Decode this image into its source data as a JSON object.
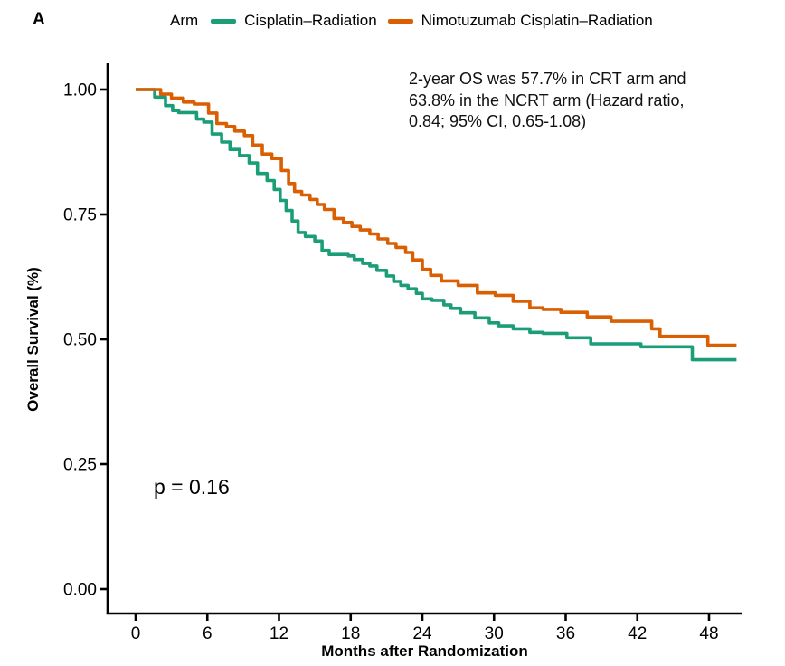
{
  "panel_label": "A",
  "legend": {
    "title": "Arm",
    "series": [
      {
        "label": "Cisplatin–Radiation",
        "color": "#1B9E77"
      },
      {
        "label": "Nimotuzumab Cisplatin–Radiation",
        "color": "#D95F02"
      }
    ]
  },
  "annotation": {
    "line1": "2-year OS was 57.7% in CRT arm and",
    "line2": "63.8% in the NCRT arm (Hazard ratio,",
    "line3": "0.84; 95% CI, 0.65-1.08)"
  },
  "p_value": "p = 0.16",
  "chart_data": {
    "type": "line",
    "subtype": "kaplan-meier-step",
    "title": "",
    "xlabel": "Months after Randomization",
    "ylabel": "Overall Survival (%)",
    "xlim": [
      0,
      50.7
    ],
    "ylim": [
      0,
      1.05
    ],
    "grid": false,
    "legend_position": "top",
    "x_ticks": [
      0,
      6,
      12,
      18,
      24,
      30,
      36,
      42,
      48
    ],
    "y_ticks": [
      {
        "value": 0.0,
        "label": "0.00"
      },
      {
        "value": 0.25,
        "label": "0.25"
      },
      {
        "value": 0.5,
        "label": "0.50"
      },
      {
        "value": 0.75,
        "label": "0.75"
      },
      {
        "value": 1.0,
        "label": "1.00"
      }
    ],
    "curve_end_month": 50.3,
    "stats": {
      "crt_2yr_os_pct": 57.7,
      "ncrt_2yr_os_pct": 63.8,
      "hazard_ratio": 0.84,
      "ci_95": "0.65-1.08",
      "p_value": 0.16
    },
    "series": [
      {
        "name": "Cisplatin–Radiation",
        "color": "#1B9E77",
        "steps": [
          [
            0,
            1.0
          ],
          [
            1.6,
            0.985
          ],
          [
            2.5,
            0.968
          ],
          [
            3.1,
            0.958
          ],
          [
            3.6,
            0.954
          ],
          [
            5.1,
            0.941
          ],
          [
            5.7,
            0.935
          ],
          [
            6.4,
            0.911
          ],
          [
            7.2,
            0.895
          ],
          [
            7.9,
            0.88
          ],
          [
            8.7,
            0.868
          ],
          [
            9.5,
            0.853
          ],
          [
            10.2,
            0.832
          ],
          [
            11.0,
            0.818
          ],
          [
            11.6,
            0.8
          ],
          [
            12.1,
            0.778
          ],
          [
            12.6,
            0.758
          ],
          [
            13.1,
            0.737
          ],
          [
            13.6,
            0.714
          ],
          [
            14.2,
            0.706
          ],
          [
            15.0,
            0.697
          ],
          [
            15.6,
            0.678
          ],
          [
            16.2,
            0.67
          ],
          [
            17.8,
            0.667
          ],
          [
            18.3,
            0.66
          ],
          [
            19.0,
            0.652
          ],
          [
            19.6,
            0.647
          ],
          [
            20.2,
            0.638
          ],
          [
            21.0,
            0.627
          ],
          [
            21.6,
            0.616
          ],
          [
            22.2,
            0.608
          ],
          [
            22.8,
            0.601
          ],
          [
            23.5,
            0.592
          ],
          [
            24.0,
            0.581
          ],
          [
            24.8,
            0.578
          ],
          [
            25.8,
            0.569
          ],
          [
            26.4,
            0.562
          ],
          [
            27.2,
            0.553
          ],
          [
            28.4,
            0.543
          ],
          [
            29.6,
            0.533
          ],
          [
            30.4,
            0.527
          ],
          [
            31.6,
            0.521
          ],
          [
            33.0,
            0.514
          ],
          [
            34.1,
            0.512
          ],
          [
            36.1,
            0.503
          ],
          [
            38.1,
            0.491
          ],
          [
            42.3,
            0.485
          ],
          [
            46.6,
            0.459
          ],
          [
            50.3,
            0.459
          ]
        ]
      },
      {
        "name": "Nimotuzumab Cisplatin–Radiation",
        "color": "#D95F02",
        "steps": [
          [
            0,
            1.0
          ],
          [
            2.1,
            0.991
          ],
          [
            3.0,
            0.983
          ],
          [
            4.0,
            0.975
          ],
          [
            4.9,
            0.971
          ],
          [
            6.1,
            0.953
          ],
          [
            6.8,
            0.932
          ],
          [
            7.6,
            0.926
          ],
          [
            8.3,
            0.917
          ],
          [
            9.1,
            0.908
          ],
          [
            9.8,
            0.889
          ],
          [
            10.6,
            0.871
          ],
          [
            11.4,
            0.862
          ],
          [
            12.2,
            0.838
          ],
          [
            12.8,
            0.812
          ],
          [
            13.3,
            0.796
          ],
          [
            13.9,
            0.789
          ],
          [
            14.6,
            0.78
          ],
          [
            15.2,
            0.77
          ],
          [
            15.8,
            0.76
          ],
          [
            16.6,
            0.742
          ],
          [
            17.4,
            0.734
          ],
          [
            18.1,
            0.726
          ],
          [
            18.8,
            0.719
          ],
          [
            19.6,
            0.711
          ],
          [
            20.3,
            0.701
          ],
          [
            21.1,
            0.692
          ],
          [
            21.8,
            0.684
          ],
          [
            22.6,
            0.674
          ],
          [
            23.2,
            0.659
          ],
          [
            24.0,
            0.64
          ],
          [
            24.7,
            0.628
          ],
          [
            25.6,
            0.617
          ],
          [
            27.0,
            0.608
          ],
          [
            28.6,
            0.593
          ],
          [
            30.1,
            0.588
          ],
          [
            31.6,
            0.576
          ],
          [
            33.0,
            0.563
          ],
          [
            34.1,
            0.56
          ],
          [
            35.6,
            0.554
          ],
          [
            37.8,
            0.545
          ],
          [
            39.8,
            0.536
          ],
          [
            43.2,
            0.521
          ],
          [
            43.9,
            0.506
          ],
          [
            47.9,
            0.488
          ],
          [
            50.3,
            0.488
          ]
        ]
      }
    ]
  }
}
